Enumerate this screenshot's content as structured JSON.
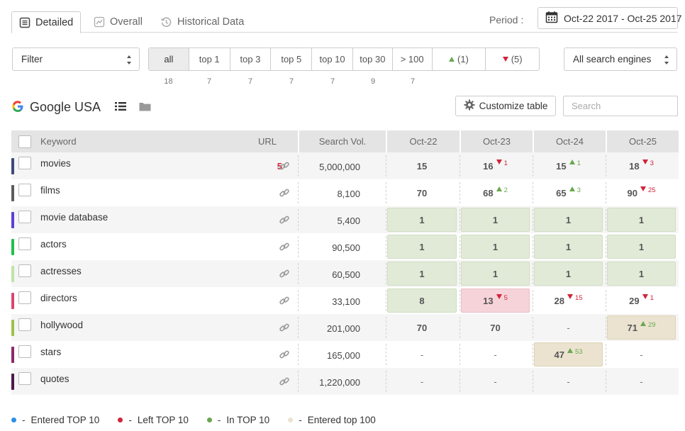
{
  "tabs": [
    {
      "label": "Detailed",
      "icon": "list-box-icon",
      "active": true
    },
    {
      "label": "Overall",
      "icon": "chart-line-icon",
      "active": false
    },
    {
      "label": "Historical Data",
      "icon": "history-icon",
      "active": false
    }
  ],
  "period": {
    "label": "Period :",
    "value": "Oct-22 2017 - Oct-25 2017"
  },
  "filter": {
    "value": "Filter"
  },
  "segments": [
    {
      "label": "all",
      "count": "18",
      "active": true
    },
    {
      "label": "top 1",
      "count": "7"
    },
    {
      "label": "top 3",
      "count": "7"
    },
    {
      "label": "top 5",
      "count": "7"
    },
    {
      "label": "top 10",
      "count": "7"
    },
    {
      "label": "top 30",
      "count": "9"
    },
    {
      "label": "> 100",
      "count": "7"
    },
    {
      "label": "(1)",
      "arrow": "up"
    },
    {
      "label": "(5)",
      "arrow": "down"
    }
  ],
  "engines": {
    "value": "All search engines"
  },
  "engine_heading": {
    "title": "Google USA"
  },
  "customize": {
    "label": "Customize table"
  },
  "search": {
    "placeholder": "Search"
  },
  "table": {
    "headers": {
      "keyword": "Keyword",
      "url": "URL",
      "volume": "Search Vol.",
      "dates": [
        "Oct-22",
        "Oct-23",
        "Oct-24",
        "Oct-25"
      ]
    },
    "rows": [
      {
        "keyword": "movies",
        "color": "#3d4a7a",
        "url_count": "5",
        "volume": "5,000,000",
        "cells": [
          {
            "v": "15"
          },
          {
            "v": "16",
            "dir": "down",
            "d": "1"
          },
          {
            "v": "15",
            "dir": "up",
            "d": "1"
          },
          {
            "v": "18",
            "dir": "down",
            "d": "3"
          }
        ]
      },
      {
        "keyword": "films",
        "color": "#5c5c5c",
        "url_count": "",
        "volume": "8,100",
        "cells": [
          {
            "v": "70"
          },
          {
            "v": "68",
            "dir": "up",
            "d": "2"
          },
          {
            "v": "65",
            "dir": "up",
            "d": "3"
          },
          {
            "v": "90",
            "dir": "down",
            "d": "25"
          }
        ]
      },
      {
        "keyword": "movie database",
        "color": "#5b3fd6",
        "url_count": "",
        "volume": "5,400",
        "cells": [
          {
            "v": "1",
            "bg": "green"
          },
          {
            "v": "1",
            "bg": "green"
          },
          {
            "v": "1",
            "bg": "green"
          },
          {
            "v": "1",
            "bg": "green"
          }
        ]
      },
      {
        "keyword": "actors",
        "color": "#1fc04a",
        "url_count": "",
        "volume": "90,500",
        "cells": [
          {
            "v": "1",
            "bg": "green"
          },
          {
            "v": "1",
            "bg": "green"
          },
          {
            "v": "1",
            "bg": "green"
          },
          {
            "v": "1",
            "bg": "green"
          }
        ]
      },
      {
        "keyword": "actresses",
        "color": "#bfe3a8",
        "url_count": "",
        "volume": "60,500",
        "cells": [
          {
            "v": "1",
            "bg": "green"
          },
          {
            "v": "1",
            "bg": "green"
          },
          {
            "v": "1",
            "bg": "green"
          },
          {
            "v": "1",
            "bg": "green"
          }
        ]
      },
      {
        "keyword": "directors",
        "color": "#d9476e",
        "url_count": "",
        "volume": "33,100",
        "cells": [
          {
            "v": "8",
            "bg": "green"
          },
          {
            "v": "13",
            "dir": "down",
            "d": "5",
            "bg": "red"
          },
          {
            "v": "28",
            "dir": "down",
            "d": "15"
          },
          {
            "v": "29",
            "dir": "down",
            "d": "1"
          }
        ]
      },
      {
        "keyword": "hollywood",
        "color": "#9bc24a",
        "url_count": "",
        "volume": "201,000",
        "cells": [
          {
            "v": "70"
          },
          {
            "v": "70"
          },
          {
            "v": "-"
          },
          {
            "v": "71",
            "dir": "up",
            "d": "29",
            "bg": "beige"
          }
        ]
      },
      {
        "keyword": "stars",
        "color": "#8a2a6a",
        "url_count": "",
        "volume": "165,000",
        "cells": [
          {
            "v": "-"
          },
          {
            "v": "-"
          },
          {
            "v": "47",
            "dir": "up",
            "d": "53",
            "bg": "beige"
          },
          {
            "v": "-"
          }
        ]
      },
      {
        "keyword": "quotes",
        "color": "#4a1a4a",
        "url_count": "",
        "volume": "1,220,000",
        "cells": [
          {
            "v": "-"
          },
          {
            "v": "-"
          },
          {
            "v": "-"
          },
          {
            "v": "-"
          }
        ]
      }
    ]
  },
  "legend": [
    {
      "label": "Entered TOP 10",
      "color": "#2b8fe6"
    },
    {
      "label": "Left TOP 10",
      "color": "#d0243a"
    },
    {
      "label": "In TOP 10",
      "color": "#6aa84f"
    },
    {
      "label": "Entered top 100",
      "color": "#ebe3d0"
    }
  ]
}
